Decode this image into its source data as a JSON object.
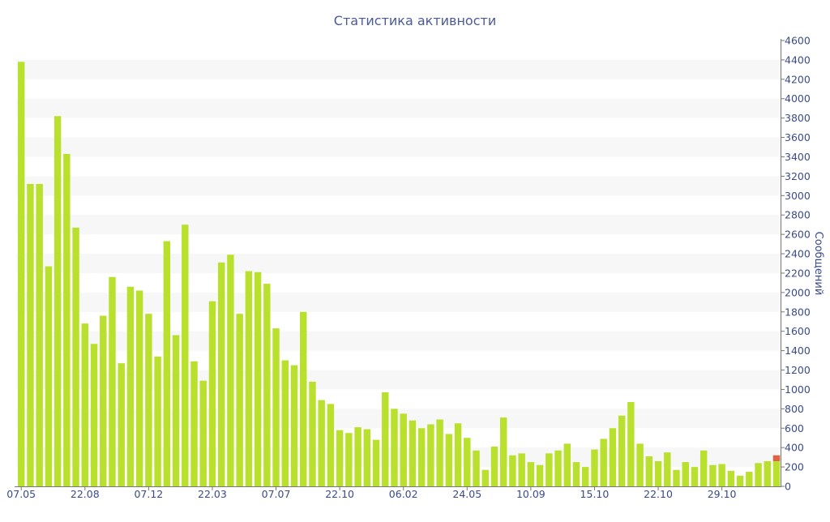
{
  "chart_data": {
    "type": "bar",
    "title": "Статистика активности",
    "ylabel": "Сообщений",
    "xlabel": "",
    "ylim": [
      0,
      4600
    ],
    "ytick_step": 200,
    "grid": "horizontal alternating bands",
    "y_axis_side": "right",
    "x_tick_labels": [
      "07.05",
      "22.08",
      "07.12",
      "22.03",
      "07.07",
      "22.10",
      "06.02",
      "24.05",
      "10.09",
      "15.10",
      "22.10",
      "29.10"
    ],
    "x_tick_bar_index": [
      0,
      7,
      14,
      21,
      28,
      35,
      42,
      49,
      56,
      63,
      70,
      77
    ],
    "colors": {
      "bar": "#b8e02c",
      "highlight": "#e0604a",
      "band": "#f7f7f7",
      "text": "#3a4a8a"
    },
    "values": [
      4380,
      3120,
      3120,
      2270,
      3820,
      3430,
      2670,
      1680,
      1470,
      1760,
      2160,
      1270,
      2060,
      2020,
      1780,
      1340,
      2530,
      1560,
      2700,
      1290,
      1090,
      1910,
      2310,
      2390,
      1780,
      2220,
      2210,
      2090,
      1630,
      1300,
      1250,
      1800,
      1080,
      890,
      850,
      580,
      550,
      610,
      590,
      480,
      970,
      800,
      750,
      680,
      600,
      640,
      690,
      540,
      650,
      500,
      370,
      170,
      410,
      710,
      320,
      340,
      250,
      220,
      340,
      370,
      440,
      250,
      200,
      380,
      490,
      600,
      730,
      870,
      440,
      310,
      260,
      350,
      170,
      250,
      200,
      370,
      220,
      230,
      160,
      110,
      150,
      240,
      260,
      320
    ],
    "highlight": {
      "index": 83,
      "value": 320,
      "highlight_value": 60
    }
  }
}
